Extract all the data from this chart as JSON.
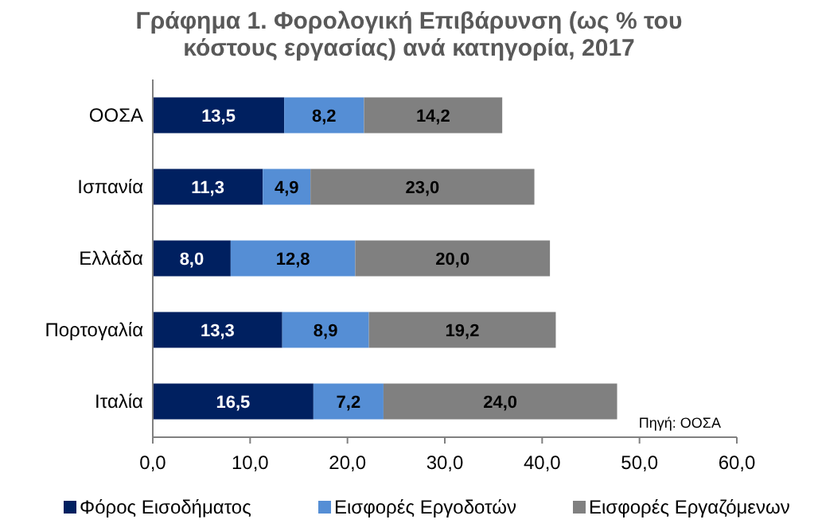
{
  "chart_data": {
    "type": "bar",
    "orientation": "horizontal",
    "stacked": true,
    "title": "Γράφημα 1. Φορολογική Επιβάρυνση (ως % του κόστους εργασίας) ανά κατηγορία, 2017",
    "categories": [
      "ΟΟΣΑ",
      "Ισπανία",
      "Ελλάδα",
      "Πορτογαλία",
      "Ιταλία"
    ],
    "series": [
      {
        "name": "Φόρος Εισοδήματος",
        "color": "#002060",
        "values": [
          13.5,
          11.3,
          8.0,
          13.3,
          16.5
        ],
        "value_labels": [
          "13,5",
          "11,3",
          "8,0",
          "13,3",
          "16,5"
        ]
      },
      {
        "name": "Εισφορές Εργοδοτών",
        "color": "#558ed5",
        "values": [
          8.2,
          4.9,
          12.8,
          8.9,
          7.2
        ],
        "value_labels": [
          "8,2",
          "4,9",
          "12,8",
          "8,9",
          "7,2"
        ]
      },
      {
        "name": "Εισφορές Εργαζόμενων",
        "color": "#808080",
        "values": [
          14.2,
          23.0,
          20.0,
          19.2,
          24.0
        ],
        "value_labels": [
          "14,2",
          "23,0",
          "20,0",
          "19,2",
          "24,0"
        ]
      }
    ],
    "xlim": [
      0,
      60
    ],
    "xticks": [
      {
        "value": 0,
        "label": "0,0"
      },
      {
        "value": 10,
        "label": "10,0"
      },
      {
        "value": 20,
        "label": "20,0"
      },
      {
        "value": 30,
        "label": "30,0"
      },
      {
        "value": 40,
        "label": "40,0"
      },
      {
        "value": 50,
        "label": "50,0"
      },
      {
        "value": 60,
        "label": "60,0"
      }
    ],
    "grid": false,
    "legend": "bottom",
    "annotations": [
      "Πηγή: ΟΟΣΑ"
    ]
  }
}
